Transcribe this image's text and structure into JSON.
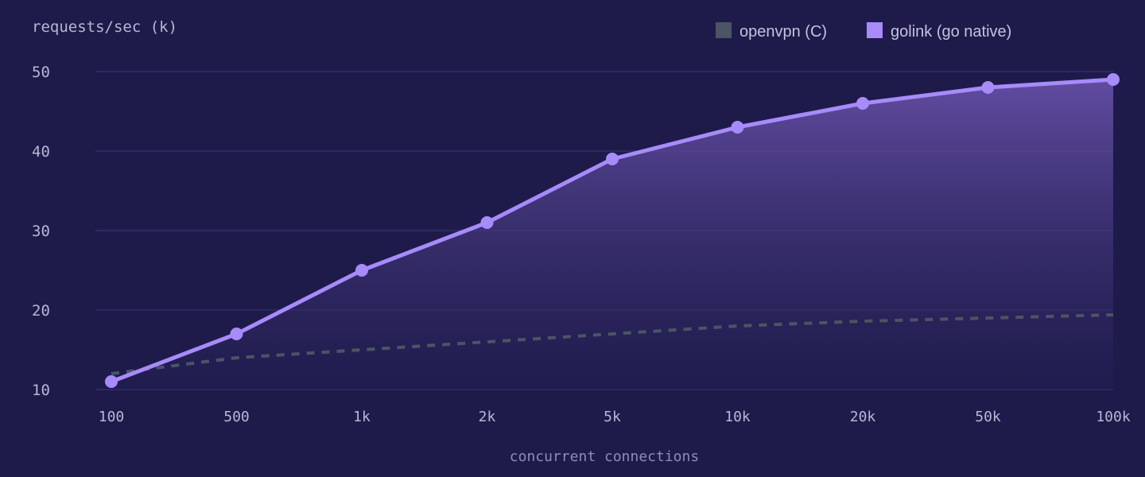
{
  "colors": {
    "background": "#1e1b4b",
    "grid": "#312e6b",
    "axis_text": "#b8b6d4",
    "axis_title": "#8e8cb0",
    "legend_text": "#c4c2de",
    "openvpn": "#4b5563",
    "golink": "#a78bfa",
    "golink_fill_top": "#6d55b0",
    "golink_fill_bottom": "#221e52"
  },
  "chart_data": {
    "type": "line",
    "ylabel": "requests/sec (k)",
    "xlabel": "concurrent connections",
    "categories": [
      "100",
      "500",
      "1k",
      "2k",
      "5k",
      "10k",
      "20k",
      "50k",
      "100k"
    ],
    "ylim": [
      10,
      50
    ],
    "yticks": [
      10,
      20,
      30,
      40,
      50
    ],
    "grid": true,
    "legend_position": "top-right",
    "series": [
      {
        "name": "openvpn (C)",
        "style": "dashed",
        "markers": false,
        "filled": false,
        "values": [
          12,
          14,
          15,
          16,
          17,
          18,
          18.6,
          19,
          19.4
        ]
      },
      {
        "name": "golink (go native)",
        "style": "solid",
        "markers": true,
        "filled": true,
        "values": [
          11,
          17,
          25,
          31,
          39,
          43,
          46,
          48,
          49
        ]
      }
    ]
  }
}
